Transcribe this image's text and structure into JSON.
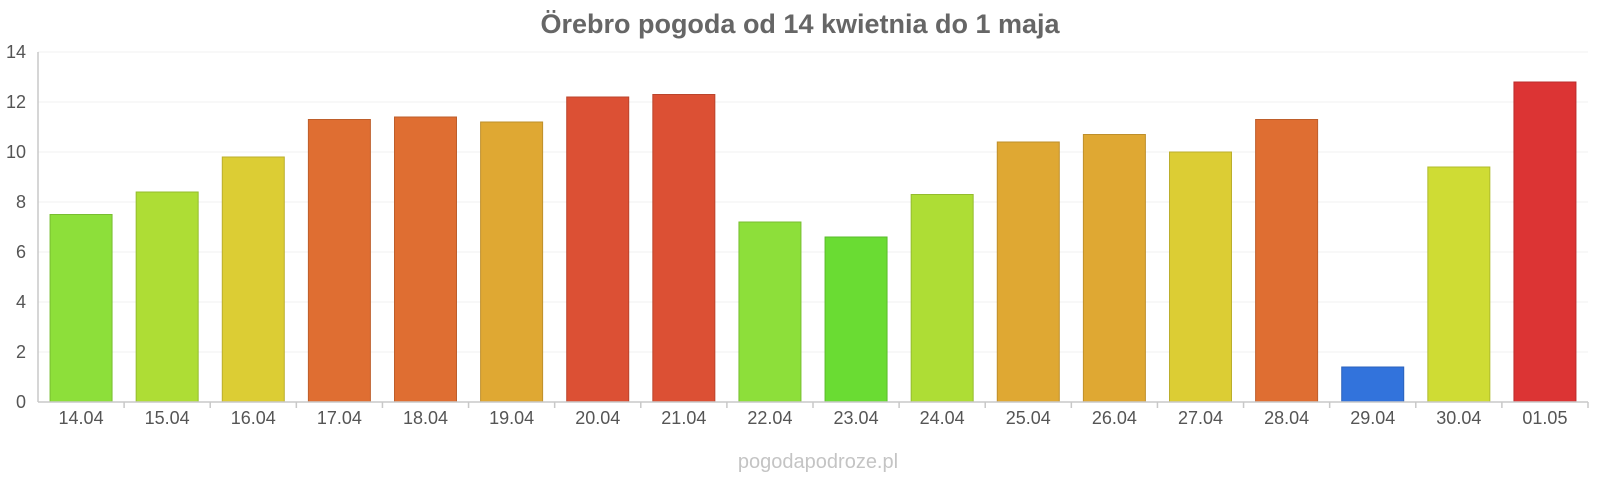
{
  "chart_data": {
    "type": "bar",
    "title": "Örebro pogoda od 14 kwietnia do 1 maja",
    "categories": [
      "14.04",
      "15.04",
      "16.04",
      "17.04",
      "18.04",
      "19.04",
      "20.04",
      "21.04",
      "22.04",
      "23.04",
      "24.04",
      "25.04",
      "26.04",
      "27.04",
      "28.04",
      "29.04",
      "30.04",
      "01.05"
    ],
    "values": [
      7.5,
      8.4,
      9.8,
      11.3,
      11.4,
      11.2,
      12.2,
      12.3,
      7.2,
      6.6,
      8.3,
      10.4,
      10.7,
      10.0,
      11.3,
      1.4,
      9.4,
      12.8
    ],
    "colors": [
      "#8ddf3a",
      "#aedd35",
      "#dccd34",
      "#df6e32",
      "#df6e32",
      "#dfa833",
      "#dc5034",
      "#dc5034",
      "#8ddf3a",
      "#6adc33",
      "#aedd35",
      "#dfa833",
      "#dfa833",
      "#dccd34",
      "#df6e32",
      "#3273dc",
      "#cfdc34",
      "#dc3434"
    ],
    "ylim": [
      0,
      14
    ],
    "yticks": [
      0,
      2,
      4,
      6,
      8,
      10,
      12,
      14
    ],
    "xlabel": "",
    "ylabel": "",
    "grid": true,
    "legend": "none"
  },
  "watermark": "pogodapodroze.pl"
}
